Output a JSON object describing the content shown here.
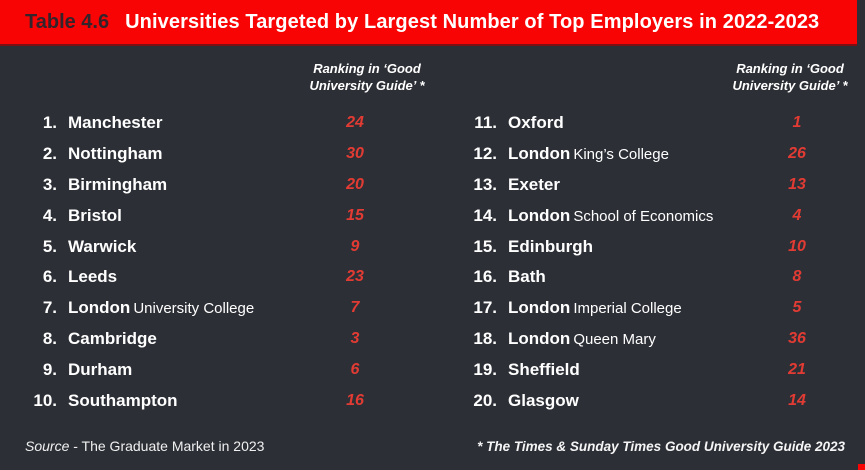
{
  "header": {
    "table_label": "Table 4.6",
    "title": "Universities Targeted by Largest Number of Top Employers in 2022-2023"
  },
  "ranking_header": {
    "line1": "Ranking in ‘Good",
    "line2": "University Guide’ *"
  },
  "left_rows": [
    {
      "num": "1.",
      "name": "Manchester",
      "secondary": "",
      "rank": "24"
    },
    {
      "num": "2.",
      "name": "Nottingham",
      "secondary": "",
      "rank": "30"
    },
    {
      "num": "3.",
      "name": "Birmingham",
      "secondary": "",
      "rank": "20"
    },
    {
      "num": "4.",
      "name": "Bristol",
      "secondary": "",
      "rank": "15"
    },
    {
      "num": "5.",
      "name": "Warwick",
      "secondary": "",
      "rank": "9"
    },
    {
      "num": "6.",
      "name": "Leeds",
      "secondary": "",
      "rank": "23"
    },
    {
      "num": "7.",
      "name": "London",
      "secondary": "University College",
      "rank": "7"
    },
    {
      "num": "8.",
      "name": "Cambridge",
      "secondary": "",
      "rank": "3"
    },
    {
      "num": "9.",
      "name": "Durham",
      "secondary": "",
      "rank": "6"
    },
    {
      "num": "10.",
      "name": "Southampton",
      "secondary": "",
      "rank": "16"
    }
  ],
  "right_rows": [
    {
      "num": "11.",
      "name": "Oxford",
      "secondary": "",
      "rank": "1"
    },
    {
      "num": "12.",
      "name": "London",
      "secondary": "King’s College",
      "rank": "26"
    },
    {
      "num": "13.",
      "name": "Exeter",
      "secondary": "",
      "rank": "13"
    },
    {
      "num": "14.",
      "name": "London",
      "secondary": "School of Economics",
      "rank": "4"
    },
    {
      "num": "15.",
      "name": "Edinburgh",
      "secondary": "",
      "rank": "10"
    },
    {
      "num": "16.",
      "name": "Bath",
      "secondary": "",
      "rank": "8"
    },
    {
      "num": "17.",
      "name": "London",
      "secondary": "Imperial College",
      "rank": "5"
    },
    {
      "num": "18.",
      "name": "London",
      "secondary": "Queen Mary",
      "rank": "36"
    },
    {
      "num": "19.",
      "name": "Sheffield",
      "secondary": "",
      "rank": "21"
    },
    {
      "num": "20.",
      "name": "Glasgow",
      "secondary": "",
      "rank": "14"
    }
  ],
  "footer": {
    "source_word": "Source",
    "source_rest": " - The Graduate Market in 2023",
    "footnote": "* The Times & Sunday Times Good University Guide 2023"
  },
  "colors": {
    "header_red": "#f90405",
    "body_background": "#2c2f36",
    "rank_red": "#e23b33",
    "text_white": "#ffffff"
  }
}
